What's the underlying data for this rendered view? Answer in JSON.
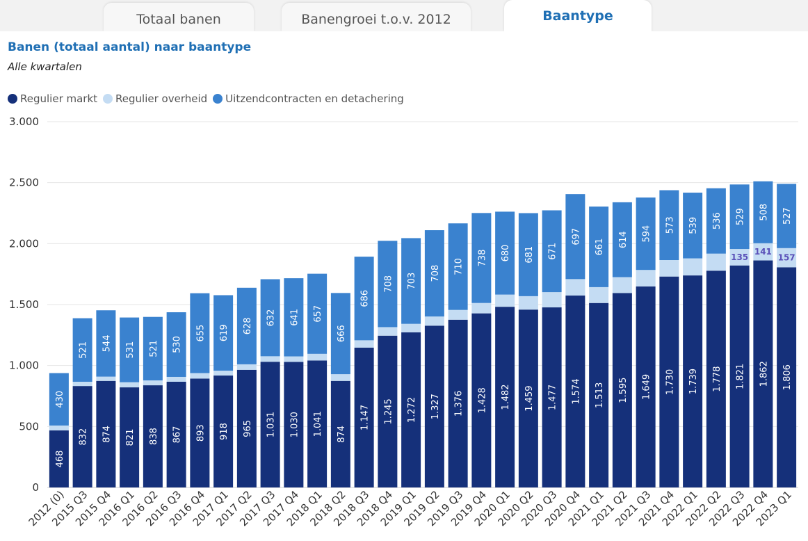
{
  "tabs": [
    {
      "label": "Totaal banen",
      "active": false
    },
    {
      "label": "Banengroei t.o.v. 2012",
      "active": false
    },
    {
      "label": "Baantype",
      "active": true
    }
  ],
  "header": {
    "title": "Banen (totaal aantal) naar baantype",
    "subtitle": "Alle kwartalen"
  },
  "chart_data": {
    "type": "bar",
    "stacked": true,
    "categories": [
      "2012 (0)",
      "2015 Q3",
      "2015 Q4",
      "2016 Q1",
      "2016 Q2",
      "2016 Q3",
      "2016 Q4",
      "2017 Q1",
      "2017 Q2",
      "2017 Q3",
      "2017 Q4",
      "2018 Q1",
      "2018 Q2",
      "2018 Q3",
      "2018 Q4",
      "2019 Q1",
      "2019 Q2",
      "2019 Q3",
      "2019 Q4",
      "2020 Q1",
      "2020 Q2",
      "2020 Q3",
      "2020 Q4",
      "2021 Q1",
      "2021 Q2",
      "2021 Q3",
      "2021 Q4",
      "2022 Q1",
      "2022 Q2",
      "2022 Q3",
      "2022 Q4",
      "2023 Q1"
    ],
    "series": [
      {
        "name": "Regulier markt",
        "color": "#15307a",
        "values": [
          468,
          832,
          874,
          821,
          838,
          867,
          893,
          918,
          965,
          1031,
          1030,
          1041,
          874,
          1147,
          1245,
          1272,
          1327,
          1376,
          1428,
          1482,
          1459,
          1477,
          1574,
          1513,
          1595,
          1649,
          1730,
          1739,
          1778,
          1821,
          1862,
          1806
        ],
        "labels": [
          "468",
          "832",
          "874",
          "821",
          "838",
          "867",
          "893",
          "918",
          "965",
          "1.031",
          "1.030",
          "1.041",
          "874",
          "1.147",
          "1.245",
          "1.272",
          "1.327",
          "1.376",
          "1.428",
          "1.482",
          "1.459",
          "1.477",
          "1.574",
          "1.513",
          "1.595",
          "1.649",
          "1.730",
          "1.739",
          "1.778",
          "1.821",
          "1.862",
          "1.806"
        ]
      },
      {
        "name": "Regulier overheid",
        "color": "#c4dcf3",
        "values": [
          40,
          35,
          35,
          42,
          40,
          40,
          45,
          40,
          45,
          45,
          45,
          55,
          55,
          60,
          70,
          70,
          75,
          80,
          85,
          100,
          110,
          125,
          135,
          130,
          130,
          135,
          135,
          140,
          140,
          135,
          141,
          157
        ],
        "labels": [
          "",
          "",
          "",
          "",
          "",
          "",
          "",
          "",
          "",
          "",
          "",
          "",
          "",
          "",
          "",
          "",
          "",
          "",
          "",
          "",
          "",
          "",
          "",
          "",
          "",
          "",
          "",
          "",
          "",
          "135",
          "141",
          "157"
        ]
      },
      {
        "name": "Uitzendcontracten en detachering",
        "color": "#3a82cf",
        "values": [
          430,
          521,
          544,
          531,
          521,
          530,
          655,
          619,
          628,
          632,
          641,
          657,
          666,
          686,
          708,
          703,
          708,
          710,
          738,
          680,
          681,
          671,
          697,
          661,
          614,
          594,
          573,
          539,
          536,
          529,
          508,
          527
        ],
        "labels": [
          "430",
          "521",
          "544",
          "531",
          "521",
          "530",
          "655",
          "619",
          "628",
          "632",
          "641",
          "657",
          "666",
          "686",
          "708",
          "703",
          "708",
          "710",
          "738",
          "680",
          "681",
          "671",
          "697",
          "661",
          "614",
          "594",
          "573",
          "539",
          "536",
          "529",
          "508",
          "527"
        ]
      }
    ],
    "ylim": [
      0,
      3000
    ],
    "yticks": [
      0,
      500,
      1000,
      1500,
      2000,
      2500,
      3000
    ],
    "ytick_labels": [
      "0",
      "500",
      "1.000",
      "1.500",
      "2.000",
      "2.500",
      "3.000"
    ],
    "xlabel": "",
    "ylabel": "",
    "grid": true,
    "legend_position": "top-left"
  }
}
